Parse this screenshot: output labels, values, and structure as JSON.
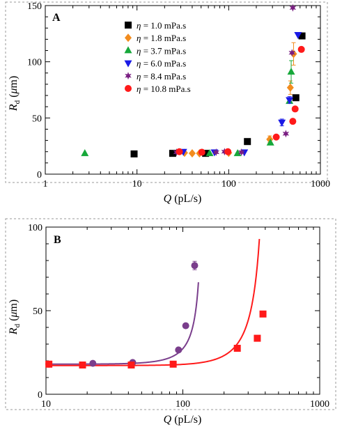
{
  "chart_data": [
    {
      "type": "scatter",
      "panel": "A",
      "xscale": "log",
      "xlim": [
        1,
        1000
      ],
      "ylim": [
        0,
        150
      ],
      "xticks": [
        1,
        10,
        100,
        1000
      ],
      "xtick_labels": [
        "1",
        "10",
        "100",
        "1000"
      ],
      "yticks": [
        0,
        50,
        100,
        150
      ],
      "ytick_labels": [
        "0",
        "50",
        "100",
        "150"
      ],
      "xlabel": {
        "var": "Q",
        "unit": " (pL/s)"
      },
      "ylabel": {
        "var": "R",
        "sub": "d",
        "unit_open": " (",
        "unit_greek": "μ",
        "unit_close": "m)"
      },
      "legend_position": "top-center",
      "series": [
        {
          "name": "η = 1.0 mPa.s",
          "symbol": "= 1.0 mPa.s",
          "marker": "square",
          "color": "#000000",
          "points": [
            [
              9.3,
              18
            ],
            [
              24.5,
              18.5
            ],
            [
              56,
              18.5
            ],
            [
              160,
              29
            ],
            [
              540,
              68
            ],
            [
              630,
              123
            ]
          ]
        },
        {
          "name": "η = 1.8 mPa.s",
          "symbol": "= 1.8 mPa.s",
          "marker": "diamond",
          "color": "#f28c1e",
          "points": [
            [
              33,
              19
            ],
            [
              40,
              18.5
            ],
            [
              48,
              18.5
            ],
            [
              100,
              19
            ],
            [
              280,
              31
            ],
            [
              470,
              77
            ],
            [
              510,
              107
            ]
          ],
          "errors": [
            0,
            0,
            0,
            0,
            3,
            6,
            10
          ]
        },
        {
          "name": "η = 3.7 mPa.s",
          "symbol": "= 3.7 mPa.s",
          "marker": "triangle-up",
          "color": "#16a83a",
          "points": [
            [
              2.7,
              18.5
            ],
            [
              62,
              18.5
            ],
            [
              125,
              18.5
            ],
            [
              285,
              28
            ],
            [
              460,
              65
            ],
            [
              480,
              91
            ]
          ],
          "errors": [
            0,
            0,
            0,
            0,
            0,
            10
          ]
        },
        {
          "name": "η = 6.0 mPa.s",
          "symbol": "= 6.0 mPa.s",
          "marker": "triangle-down",
          "color": "#1a1ae6",
          "points": [
            [
              32,
              20
            ],
            [
              70,
              19.5
            ],
            [
              148,
              19.5
            ],
            [
              380,
              46
            ],
            [
              460,
              66
            ],
            [
              570,
              124
            ]
          ],
          "errors": [
            0,
            0,
            0,
            3,
            3,
            0
          ]
        },
        {
          "name": "η = 8.4 mPa.s",
          "symbol": "= 8.4 mPa.s",
          "marker": "star",
          "color": "#7a1f82",
          "points": [
            [
              27,
              19.5
            ],
            [
              73,
              19.5
            ],
            [
              90,
              20
            ],
            [
              138,
              19.5
            ],
            [
              420,
              36
            ],
            [
              490,
              108
            ],
            [
              500,
              148
            ]
          ]
        },
        {
          "name": "η = 10.8 mPa.s",
          "symbol": "= 10.8 mPa.s",
          "marker": "circle",
          "color": "#ff1a1a",
          "points": [
            [
              29,
              20
            ],
            [
              51,
              19.5
            ],
            [
              98,
              20
            ],
            [
              330,
              33
            ],
            [
              500,
              47
            ],
            [
              530,
              58
            ],
            [
              620,
              111
            ]
          ]
        }
      ]
    },
    {
      "type": "scatter",
      "panel": "B",
      "xscale": "log",
      "xlim": [
        10,
        1000
      ],
      "ylim": [
        0,
        100
      ],
      "xticks": [
        10,
        100,
        1000
      ],
      "xtick_labels": [
        "10",
        "100",
        "1000"
      ],
      "yticks": [
        0,
        50,
        100
      ],
      "ytick_labels": [
        "0",
        "50",
        "100"
      ],
      "xlabel": {
        "var": "Q",
        "unit": " (pL/s)"
      },
      "ylabel": {
        "var": "R",
        "sub": "d",
        "unit_open": " (",
        "unit_greek": "μ",
        "unit_close": "m)"
      },
      "series": [
        {
          "marker": "circle",
          "color": "#7a3e8c",
          "points": [
            [
              10.5,
              18
            ],
            [
              22,
              18.5
            ],
            [
              43,
              19
            ],
            [
              93,
              26.5
            ],
            [
              105,
              41
            ],
            [
              122,
              77
            ]
          ],
          "errors": [
            0,
            0,
            0,
            0,
            0,
            2.5
          ],
          "fit": {
            "color": "#7a3e8c",
            "y0": 18,
            "a": 13.72,
            "n": 3,
            "qmax": 130
          }
        },
        {
          "marker": "square",
          "color": "#ff1a1a",
          "points": [
            [
              10.5,
              18
            ],
            [
              18.5,
              17.5
            ],
            [
              42,
              17.5
            ],
            [
              85,
              18
            ],
            [
              250,
              27.5
            ],
            [
              350,
              33.5
            ],
            [
              385,
              48
            ]
          ],
          "fit": {
            "color": "#ff1a1a",
            "y0": 17.2,
            "a": 39.8,
            "n": 3,
            "qmax": 390
          }
        }
      ]
    }
  ]
}
